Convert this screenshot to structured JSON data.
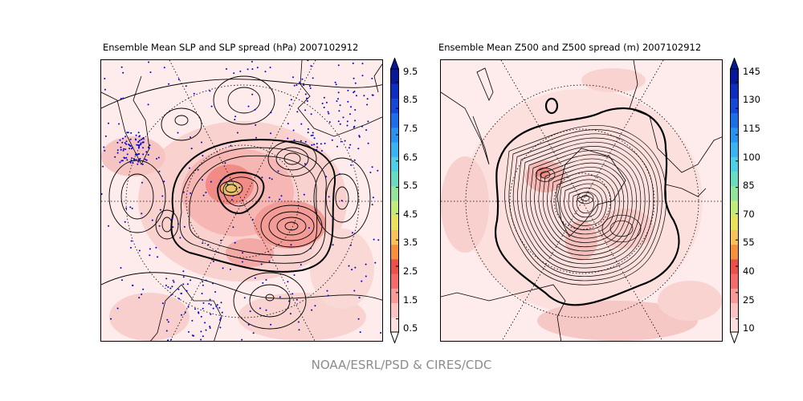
{
  "chart_data": [
    {
      "type": "heatmap",
      "title": "Ensemble Mean SLP and SLP spread (hPa) 2007102912",
      "projection": "north-polar-stereographic",
      "contours": "ensemble mean SLP (black lines)",
      "fill": "SLP spread",
      "observation_markers": "blue dots",
      "colorbar": {
        "ticks": [
          "0.5",
          "1.5",
          "2.5",
          "3.5",
          "4.5",
          "5.5",
          "6.5",
          "7.5",
          "8.5",
          "9.5"
        ],
        "range": [
          0.5,
          9.5
        ],
        "extend": "both",
        "colors": [
          "#fde0df",
          "#fbc4c3",
          "#f99a99",
          "#f56b6b",
          "#ec5048",
          "#f7903c",
          "#f9c35a",
          "#e9e25a",
          "#c2ec78",
          "#92e59b",
          "#68dcc0",
          "#4dd0e6",
          "#3ab3f3",
          "#2a93f0",
          "#1c6fe8",
          "#1548d8",
          "#0d2ec0",
          "#08189a"
        ]
      }
    },
    {
      "type": "heatmap",
      "title": "Ensemble Mean Z500 and Z500 spread (m) 2007102912",
      "projection": "north-polar-stereographic",
      "contours": "ensemble mean Z500 (black lines)",
      "fill": "Z500 spread",
      "colorbar": {
        "ticks": [
          "10",
          "25",
          "40",
          "55",
          "70",
          "85",
          "100",
          "115",
          "130",
          "145"
        ],
        "range": [
          10,
          145
        ],
        "extend": "both",
        "colors": [
          "#fde0df",
          "#fbc4c3",
          "#f99a99",
          "#f56b6b",
          "#ec5048",
          "#f7903c",
          "#f9c35a",
          "#e9e25a",
          "#c2ec78",
          "#92e59b",
          "#68dcc0",
          "#4dd0e6",
          "#3ab3f3",
          "#2a93f0",
          "#1c6fe8",
          "#1548d8",
          "#0d2ec0",
          "#08189a"
        ]
      }
    }
  ],
  "footer": "NOAA/ESRL/PSD & CIRES/CDC"
}
